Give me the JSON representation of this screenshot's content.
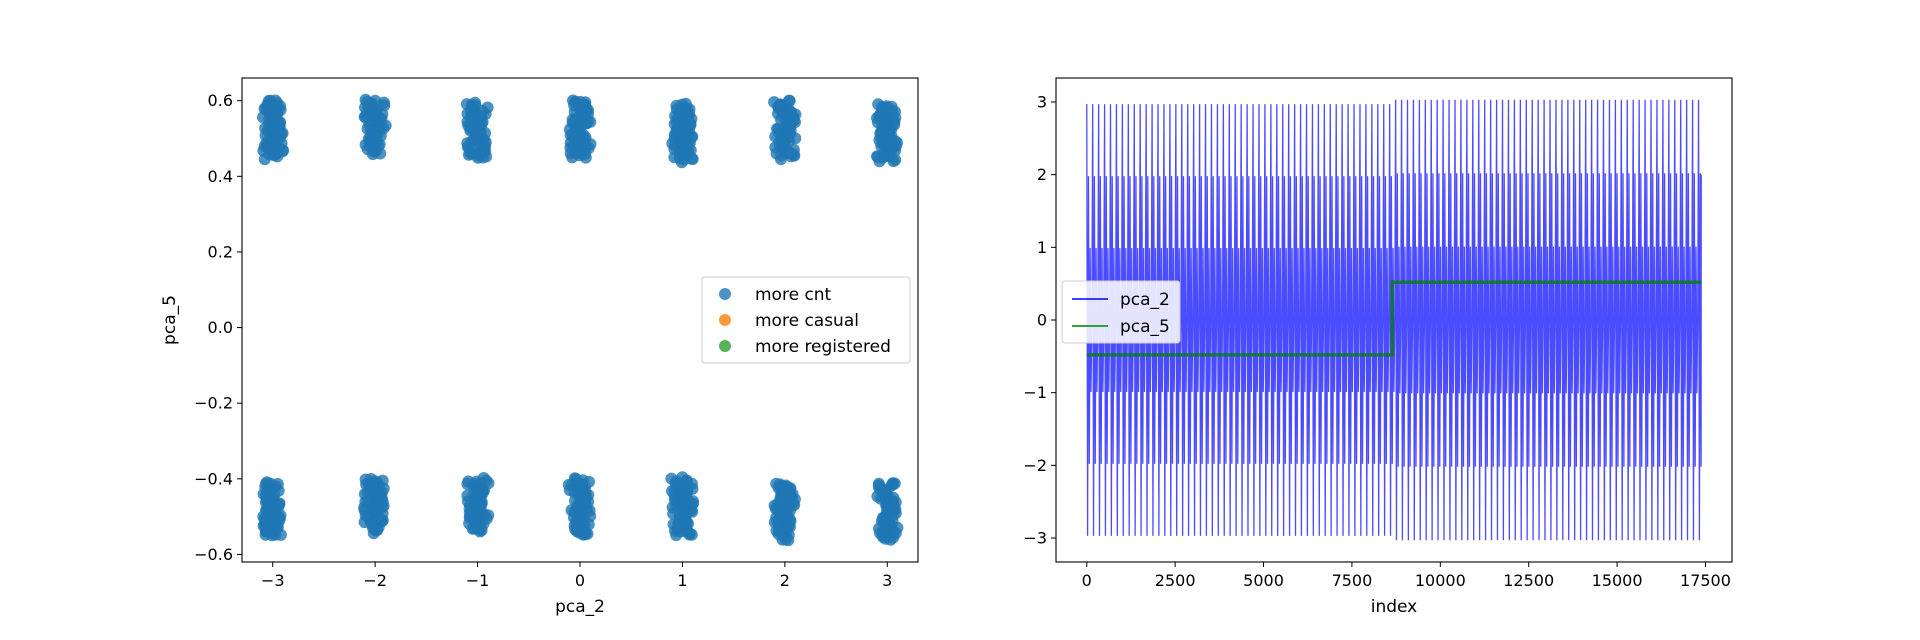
{
  "chart_data": [
    {
      "type": "scatter",
      "xlabel": "pca_2",
      "ylabel": "pca_5",
      "xlim": [
        -3.3,
        3.3
      ],
      "ylim": [
        -0.62,
        0.66
      ],
      "xticks": [
        -3,
        -2,
        -1,
        0,
        1,
        2,
        3
      ],
      "yticks": [
        -0.6,
        -0.4,
        -0.2,
        0.0,
        0.2,
        0.4,
        0.6
      ],
      "xtick_labels": [
        "−3",
        "−2",
        "−1",
        "0",
        "1",
        "2",
        "3"
      ],
      "ytick_labels": [
        "−0.6",
        "−0.4",
        "−0.2",
        "0.0",
        "0.2",
        "0.4",
        "0.6"
      ],
      "legend": {
        "placement": "center-right",
        "entries": [
          {
            "label": "more cnt",
            "color": "#1f77b4"
          },
          {
            "label": "more casual",
            "color": "#ff7f0e"
          },
          {
            "label": "more registered",
            "color": "#2ca02c"
          }
        ]
      },
      "series": [
        {
          "name": "more cnt",
          "color": "#1f77b4",
          "clusters": [
            {
              "x": -3,
              "y_range": [
                0.45,
                0.6
              ]
            },
            {
              "x": -2,
              "y_range": [
                0.46,
                0.6
              ]
            },
            {
              "x": -1,
              "y_range": [
                0.45,
                0.59
              ]
            },
            {
              "x": 0,
              "y_range": [
                0.45,
                0.6
              ]
            },
            {
              "x": 1,
              "y_range": [
                0.44,
                0.59
              ]
            },
            {
              "x": 2,
              "y_range": [
                0.45,
                0.6
              ]
            },
            {
              "x": 3,
              "y_range": [
                0.44,
                0.59
              ]
            },
            {
              "x": -3,
              "y_range": [
                -0.55,
                -0.41
              ]
            },
            {
              "x": -2,
              "y_range": [
                -0.54,
                -0.4
              ]
            },
            {
              "x": -1,
              "y_range": [
                -0.54,
                -0.4
              ]
            },
            {
              "x": 0,
              "y_range": [
                -0.55,
                -0.4
              ]
            },
            {
              "x": 1,
              "y_range": [
                -0.55,
                -0.4
              ]
            },
            {
              "x": 2,
              "y_range": [
                -0.56,
                -0.41
              ]
            },
            {
              "x": 3,
              "y_range": [
                -0.56,
                -0.41
              ]
            }
          ]
        },
        {
          "name": "more casual",
          "color": "#ff7f0e",
          "clusters": []
        },
        {
          "name": "more registered",
          "color": "#2ca02c",
          "clusters": []
        }
      ]
    },
    {
      "type": "line",
      "xlabel": "index",
      "ylabel": "",
      "xlim": [
        -870,
        18250
      ],
      "ylim": [
        -3.33,
        3.33
      ],
      "xticks": [
        0,
        2500,
        5000,
        7500,
        10000,
        12500,
        15000,
        17500
      ],
      "yticks": [
        -3,
        -2,
        -1,
        0,
        1,
        2,
        3
      ],
      "xtick_labels": [
        "0",
        "2500",
        "5000",
        "7500",
        "10000",
        "12500",
        "15000",
        "17500"
      ],
      "ytick_labels": [
        "−3",
        "−2",
        "−1",
        "0",
        "1",
        "2",
        "3"
      ],
      "legend": {
        "placement": "center-left",
        "entries": [
          {
            "label": "pca_2",
            "color": "#0000ff"
          },
          {
            "label": "pca_5",
            "color": "#008000"
          }
        ]
      },
      "series": [
        {
          "name": "pca_2",
          "color": "#0000ff",
          "x_range": [
            0,
            17379
          ],
          "cycle_length": 168,
          "levels": [
            -3,
            -2,
            -1,
            0,
            1,
            2,
            3
          ],
          "amplitude_first_half": 2.97,
          "amplitude_second_half": 3.03,
          "break_at": 8600
        },
        {
          "name": "pca_5",
          "color": "#008000",
          "x": [
            0,
            8640,
            8640,
            17379
          ],
          "y": [
            -0.48,
            -0.48,
            0.52,
            0.52
          ]
        }
      ]
    }
  ]
}
